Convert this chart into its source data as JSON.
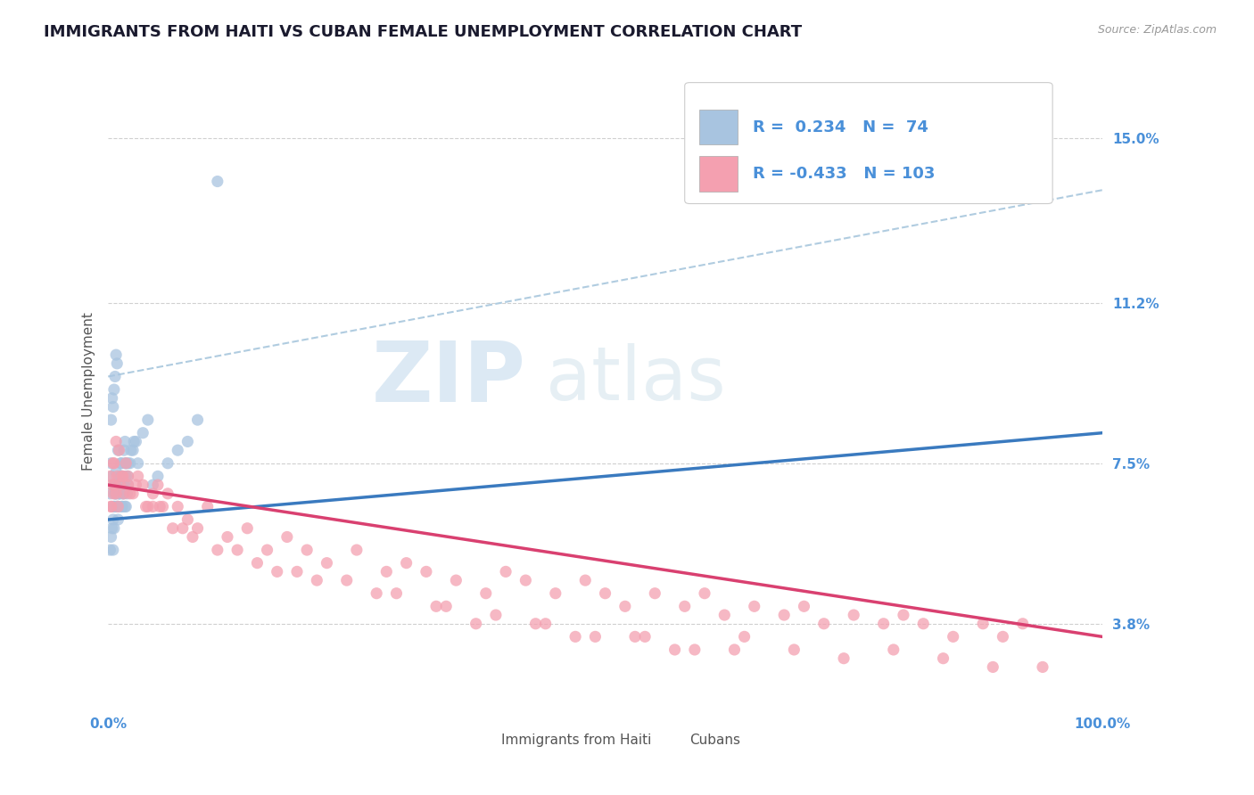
{
  "title": "IMMIGRANTS FROM HAITI VS CUBAN FEMALE UNEMPLOYMENT CORRELATION CHART",
  "source_text": "Source: ZipAtlas.com",
  "ylabel": "Female Unemployment",
  "y_ticks": [
    3.8,
    7.5,
    11.2,
    15.0
  ],
  "x_range": [
    0.0,
    100.0
  ],
  "y_range": [
    1.8,
    16.5
  ],
  "haiti_R": 0.234,
  "haiti_N": 74,
  "cuba_R": -0.433,
  "cuba_N": 103,
  "haiti_color": "#a8c4e0",
  "cuba_color": "#f4a0b0",
  "haiti_line_color": "#3a7abf",
  "cuba_line_color": "#d94070",
  "dashed_line_color": "#b0cce0",
  "title_color": "#1a1a2e",
  "axis_label_color": "#4a90d9",
  "legend_R_color": "#4a90d9",
  "background_color": "#ffffff",
  "watermark_text": "ZIPatlas",
  "watermark_color": "#c8dff0",
  "haiti_line_x0": 0,
  "haiti_line_y0": 6.2,
  "haiti_line_x1": 100,
  "haiti_line_y1": 8.2,
  "cuba_line_x0": 0,
  "cuba_line_y0": 7.0,
  "cuba_line_x1": 100,
  "cuba_line_y1": 3.5,
  "dash_line_x0": 0,
  "dash_line_y0": 9.5,
  "dash_line_x1": 100,
  "dash_line_y1": 13.8,
  "haiti_scatter_x": [
    0.2,
    0.3,
    0.4,
    0.5,
    0.6,
    0.7,
    0.8,
    0.9,
    1.0,
    1.0,
    1.1,
    1.2,
    1.3,
    1.4,
    1.5,
    1.6,
    1.7,
    1.8,
    1.9,
    2.0,
    0.3,
    0.4,
    0.5,
    0.6,
    0.7,
    0.8,
    0.9,
    1.0,
    1.1,
    1.2,
    1.3,
    1.4,
    1.5,
    1.6,
    1.7,
    1.8,
    2.0,
    2.2,
    2.5,
    2.8,
    0.5,
    0.6,
    0.7,
    0.8,
    0.9,
    1.0,
    1.1,
    1.2,
    1.3,
    1.4,
    1.5,
    1.6,
    1.7,
    1.8,
    2.0,
    2.3,
    2.6,
    3.0,
    3.5,
    4.0,
    0.2,
    0.3,
    0.4,
    0.5,
    0.6,
    0.7,
    0.8,
    4.5,
    5.0,
    6.0,
    7.0,
    8.0,
    9.0,
    11.0
  ],
  "haiti_scatter_y": [
    6.8,
    7.5,
    7.2,
    6.5,
    7.0,
    6.8,
    7.3,
    6.5,
    7.0,
    7.8,
    6.8,
    7.2,
    7.5,
    6.5,
    7.0,
    7.8,
    8.0,
    7.5,
    6.8,
    7.2,
    8.5,
    9.0,
    8.8,
    9.2,
    9.5,
    10.0,
    9.8,
    6.5,
    7.0,
    6.8,
    7.5,
    7.2,
    6.8,
    7.0,
    7.5,
    6.5,
    7.0,
    7.5,
    7.8,
    8.0,
    6.2,
    6.5,
    6.8,
    7.0,
    6.5,
    6.2,
    6.8,
    7.0,
    7.2,
    6.5,
    6.8,
    7.0,
    6.5,
    7.2,
    7.5,
    7.8,
    8.0,
    7.5,
    8.2,
    8.5,
    5.5,
    5.8,
    6.0,
    5.5,
    6.0,
    6.5,
    6.8,
    7.0,
    7.2,
    7.5,
    7.8,
    8.0,
    8.5,
    14.0
  ],
  "cuba_scatter_x": [
    0.2,
    0.3,
    0.4,
    0.5,
    0.6,
    0.7,
    0.8,
    0.9,
    1.0,
    1.2,
    1.4,
    1.6,
    1.8,
    2.0,
    2.5,
    3.0,
    3.5,
    4.0,
    4.5,
    5.0,
    5.5,
    6.0,
    7.0,
    8.0,
    9.0,
    10.0,
    12.0,
    14.0,
    16.0,
    18.0,
    20.0,
    22.0,
    25.0,
    28.0,
    30.0,
    32.0,
    35.0,
    38.0,
    40.0,
    42.0,
    45.0,
    48.0,
    50.0,
    52.0,
    55.0,
    58.0,
    60.0,
    62.0,
    65.0,
    68.0,
    70.0,
    72.0,
    75.0,
    78.0,
    80.0,
    82.0,
    85.0,
    88.0,
    90.0,
    92.0,
    0.3,
    0.5,
    0.8,
    1.1,
    1.5,
    2.2,
    2.8,
    3.8,
    5.2,
    6.5,
    8.5,
    11.0,
    15.0,
    19.0,
    24.0,
    29.0,
    34.0,
    39.0,
    44.0,
    49.0,
    54.0,
    59.0,
    64.0,
    69.0,
    74.0,
    79.0,
    84.0,
    89.0,
    94.0,
    2.0,
    4.5,
    7.5,
    13.0,
    17.0,
    21.0,
    27.0,
    33.0,
    37.0,
    43.0,
    47.0,
    53.0,
    57.0,
    63.0
  ],
  "cuba_scatter_y": [
    7.2,
    6.5,
    7.0,
    6.8,
    7.5,
    7.0,
    6.8,
    7.2,
    6.5,
    7.0,
    7.2,
    6.8,
    7.5,
    7.0,
    6.8,
    7.2,
    7.0,
    6.5,
    6.8,
    7.0,
    6.5,
    6.8,
    6.5,
    6.2,
    6.0,
    6.5,
    5.8,
    6.0,
    5.5,
    5.8,
    5.5,
    5.2,
    5.5,
    5.0,
    5.2,
    5.0,
    4.8,
    4.5,
    5.0,
    4.8,
    4.5,
    4.8,
    4.5,
    4.2,
    4.5,
    4.2,
    4.5,
    4.0,
    4.2,
    4.0,
    4.2,
    3.8,
    4.0,
    3.8,
    4.0,
    3.8,
    3.5,
    3.8,
    3.5,
    3.8,
    6.5,
    7.5,
    8.0,
    7.8,
    7.2,
    6.8,
    7.0,
    6.5,
    6.5,
    6.0,
    5.8,
    5.5,
    5.2,
    5.0,
    4.8,
    4.5,
    4.2,
    4.0,
    3.8,
    3.5,
    3.5,
    3.2,
    3.5,
    3.2,
    3.0,
    3.2,
    3.0,
    2.8,
    2.8,
    7.2,
    6.5,
    6.0,
    5.5,
    5.0,
    4.8,
    4.5,
    4.2,
    3.8,
    3.8,
    3.5,
    3.5,
    3.2,
    3.2
  ],
  "title_fontsize": 13,
  "axis_label_fontsize": 11,
  "tick_fontsize": 11,
  "legend_fontsize": 13
}
